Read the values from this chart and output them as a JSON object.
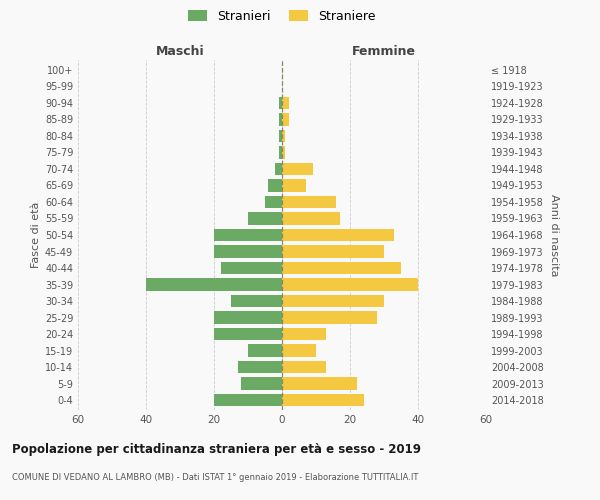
{
  "age_groups": [
    "0-4",
    "5-9",
    "10-14",
    "15-19",
    "20-24",
    "25-29",
    "30-34",
    "35-39",
    "40-44",
    "45-49",
    "50-54",
    "55-59",
    "60-64",
    "65-69",
    "70-74",
    "75-79",
    "80-84",
    "85-89",
    "90-94",
    "95-99",
    "100+"
  ],
  "birth_years": [
    "2014-2018",
    "2009-2013",
    "2004-2008",
    "1999-2003",
    "1994-1998",
    "1989-1993",
    "1984-1988",
    "1979-1983",
    "1974-1978",
    "1969-1973",
    "1964-1968",
    "1959-1963",
    "1954-1958",
    "1949-1953",
    "1944-1948",
    "1939-1943",
    "1934-1938",
    "1929-1933",
    "1924-1928",
    "1919-1923",
    "≤ 1918"
  ],
  "males": [
    20,
    12,
    13,
    10,
    20,
    20,
    15,
    40,
    18,
    20,
    20,
    10,
    5,
    4,
    2,
    1,
    1,
    1,
    1,
    0,
    0
  ],
  "females": [
    24,
    22,
    13,
    10,
    13,
    28,
    30,
    40,
    35,
    30,
    33,
    17,
    16,
    7,
    9,
    1,
    1,
    2,
    2,
    0,
    0
  ],
  "male_color": "#6aaa64",
  "female_color": "#f5c842",
  "male_label": "Stranieri",
  "female_label": "Straniere",
  "title": "Popolazione per cittadinanza straniera per età e sesso - 2019",
  "subtitle": "COMUNE DI VEDANO AL LAMBRO (MB) - Dati ISTAT 1° gennaio 2019 - Elaborazione TUTTITALIA.IT",
  "label_maschi": "Maschi",
  "label_femmine": "Femmine",
  "ylabel_left": "Fasce di età",
  "ylabel_right": "Anni di nascita",
  "xlim": 60,
  "background_color": "#f9f9f9",
  "grid_color": "#cccccc"
}
